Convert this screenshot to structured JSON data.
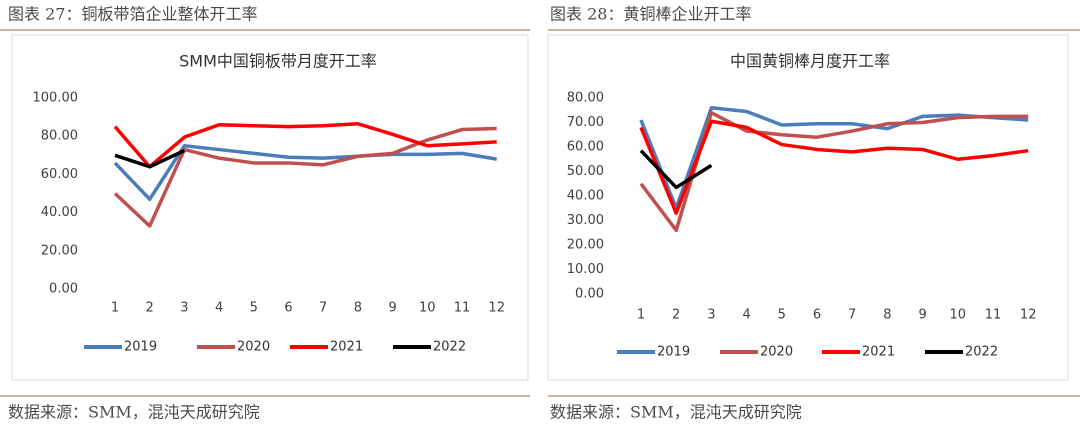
{
  "chart_data": [
    {
      "type": "line",
      "caption": "图表 27：铜板带箔企业整体开工率",
      "title": "SMM中国铜板带月度开工率",
      "source": "数据来源：SMM，混沌天成研究院",
      "categories": [
        1,
        2,
        3,
        4,
        5,
        6,
        7,
        8,
        9,
        10,
        11,
        12
      ],
      "series": [
        {
          "name": "2019",
          "color": "#4a7ebb",
          "values": [
            66,
            47,
            75,
            73,
            71,
            69,
            68.5,
            69.5,
            70.5,
            70.5,
            71,
            68
          ]
        },
        {
          "name": "2020",
          "color": "#c0504d",
          "values": [
            50,
            33,
            73,
            68.5,
            66,
            66,
            65,
            69.5,
            71,
            78,
            83.5,
            84
          ]
        },
        {
          "name": "2021",
          "color": "#ff0000",
          "values": [
            85,
            64,
            79.5,
            86,
            85.5,
            85,
            85.5,
            86.5,
            81,
            75,
            76,
            77
          ]
        },
        {
          "name": "2022",
          "color": "#000000",
          "values": [
            70,
            64,
            72.5,
            null,
            null,
            null,
            null,
            null,
            null,
            null,
            null,
            null
          ]
        }
      ],
      "ylim": [
        0,
        100
      ],
      "yticks": [
        {
          "value": 0,
          "label": "0.00"
        },
        {
          "value": 20,
          "label": "20.00"
        },
        {
          "value": 40,
          "label": "40.00"
        },
        {
          "value": 60,
          "label": "60.00"
        },
        {
          "value": 80,
          "label": "80.00"
        },
        {
          "value": 100,
          "label": "100.00"
        }
      ],
      "grid": false,
      "legend": "bottom"
    },
    {
      "type": "line",
      "caption": "图表 28：黄铜棒企业开工率",
      "title": "中国黄铜棒月度开工率",
      "source": "数据来源：SMM，混沌天成研究院",
      "categories": [
        1,
        2,
        3,
        4,
        5,
        6,
        7,
        8,
        9,
        10,
        11,
        12
      ],
      "series": [
        {
          "name": "2019",
          "color": "#4a7ebb",
          "values": [
            71,
            35,
            76,
            74.5,
            69,
            69.5,
            69.5,
            67.5,
            72.5,
            73,
            72,
            71
          ]
        },
        {
          "name": "2020",
          "color": "#c0504d",
          "values": [
            45,
            26,
            74,
            66.5,
            65,
            64,
            66.5,
            69.5,
            70,
            72,
            72.5,
            72.5
          ]
        },
        {
          "name": "2021",
          "color": "#ff0000",
          "values": [
            68,
            33,
            70.5,
            68,
            61,
            59,
            58,
            59.5,
            59,
            55,
            56.5,
            58.5
          ]
        },
        {
          "name": "2022",
          "color": "#000000",
          "values": [
            58.5,
            43.5,
            52.5,
            null,
            null,
            null,
            null,
            null,
            null,
            null,
            null,
            null
          ]
        }
      ],
      "ylim": [
        0,
        80
      ],
      "yticks": [
        {
          "value": 0,
          "label": "0.00"
        },
        {
          "value": 10,
          "label": "10.00"
        },
        {
          "value": 20,
          "label": "20.00"
        },
        {
          "value": 30,
          "label": "30.00"
        },
        {
          "value": 40,
          "label": "40.00"
        },
        {
          "value": 50,
          "label": "50.00"
        },
        {
          "value": 60,
          "label": "60.00"
        },
        {
          "value": 70,
          "label": "70.00"
        },
        {
          "value": 80,
          "label": "80.00"
        }
      ],
      "grid": false,
      "legend": "bottom"
    }
  ]
}
